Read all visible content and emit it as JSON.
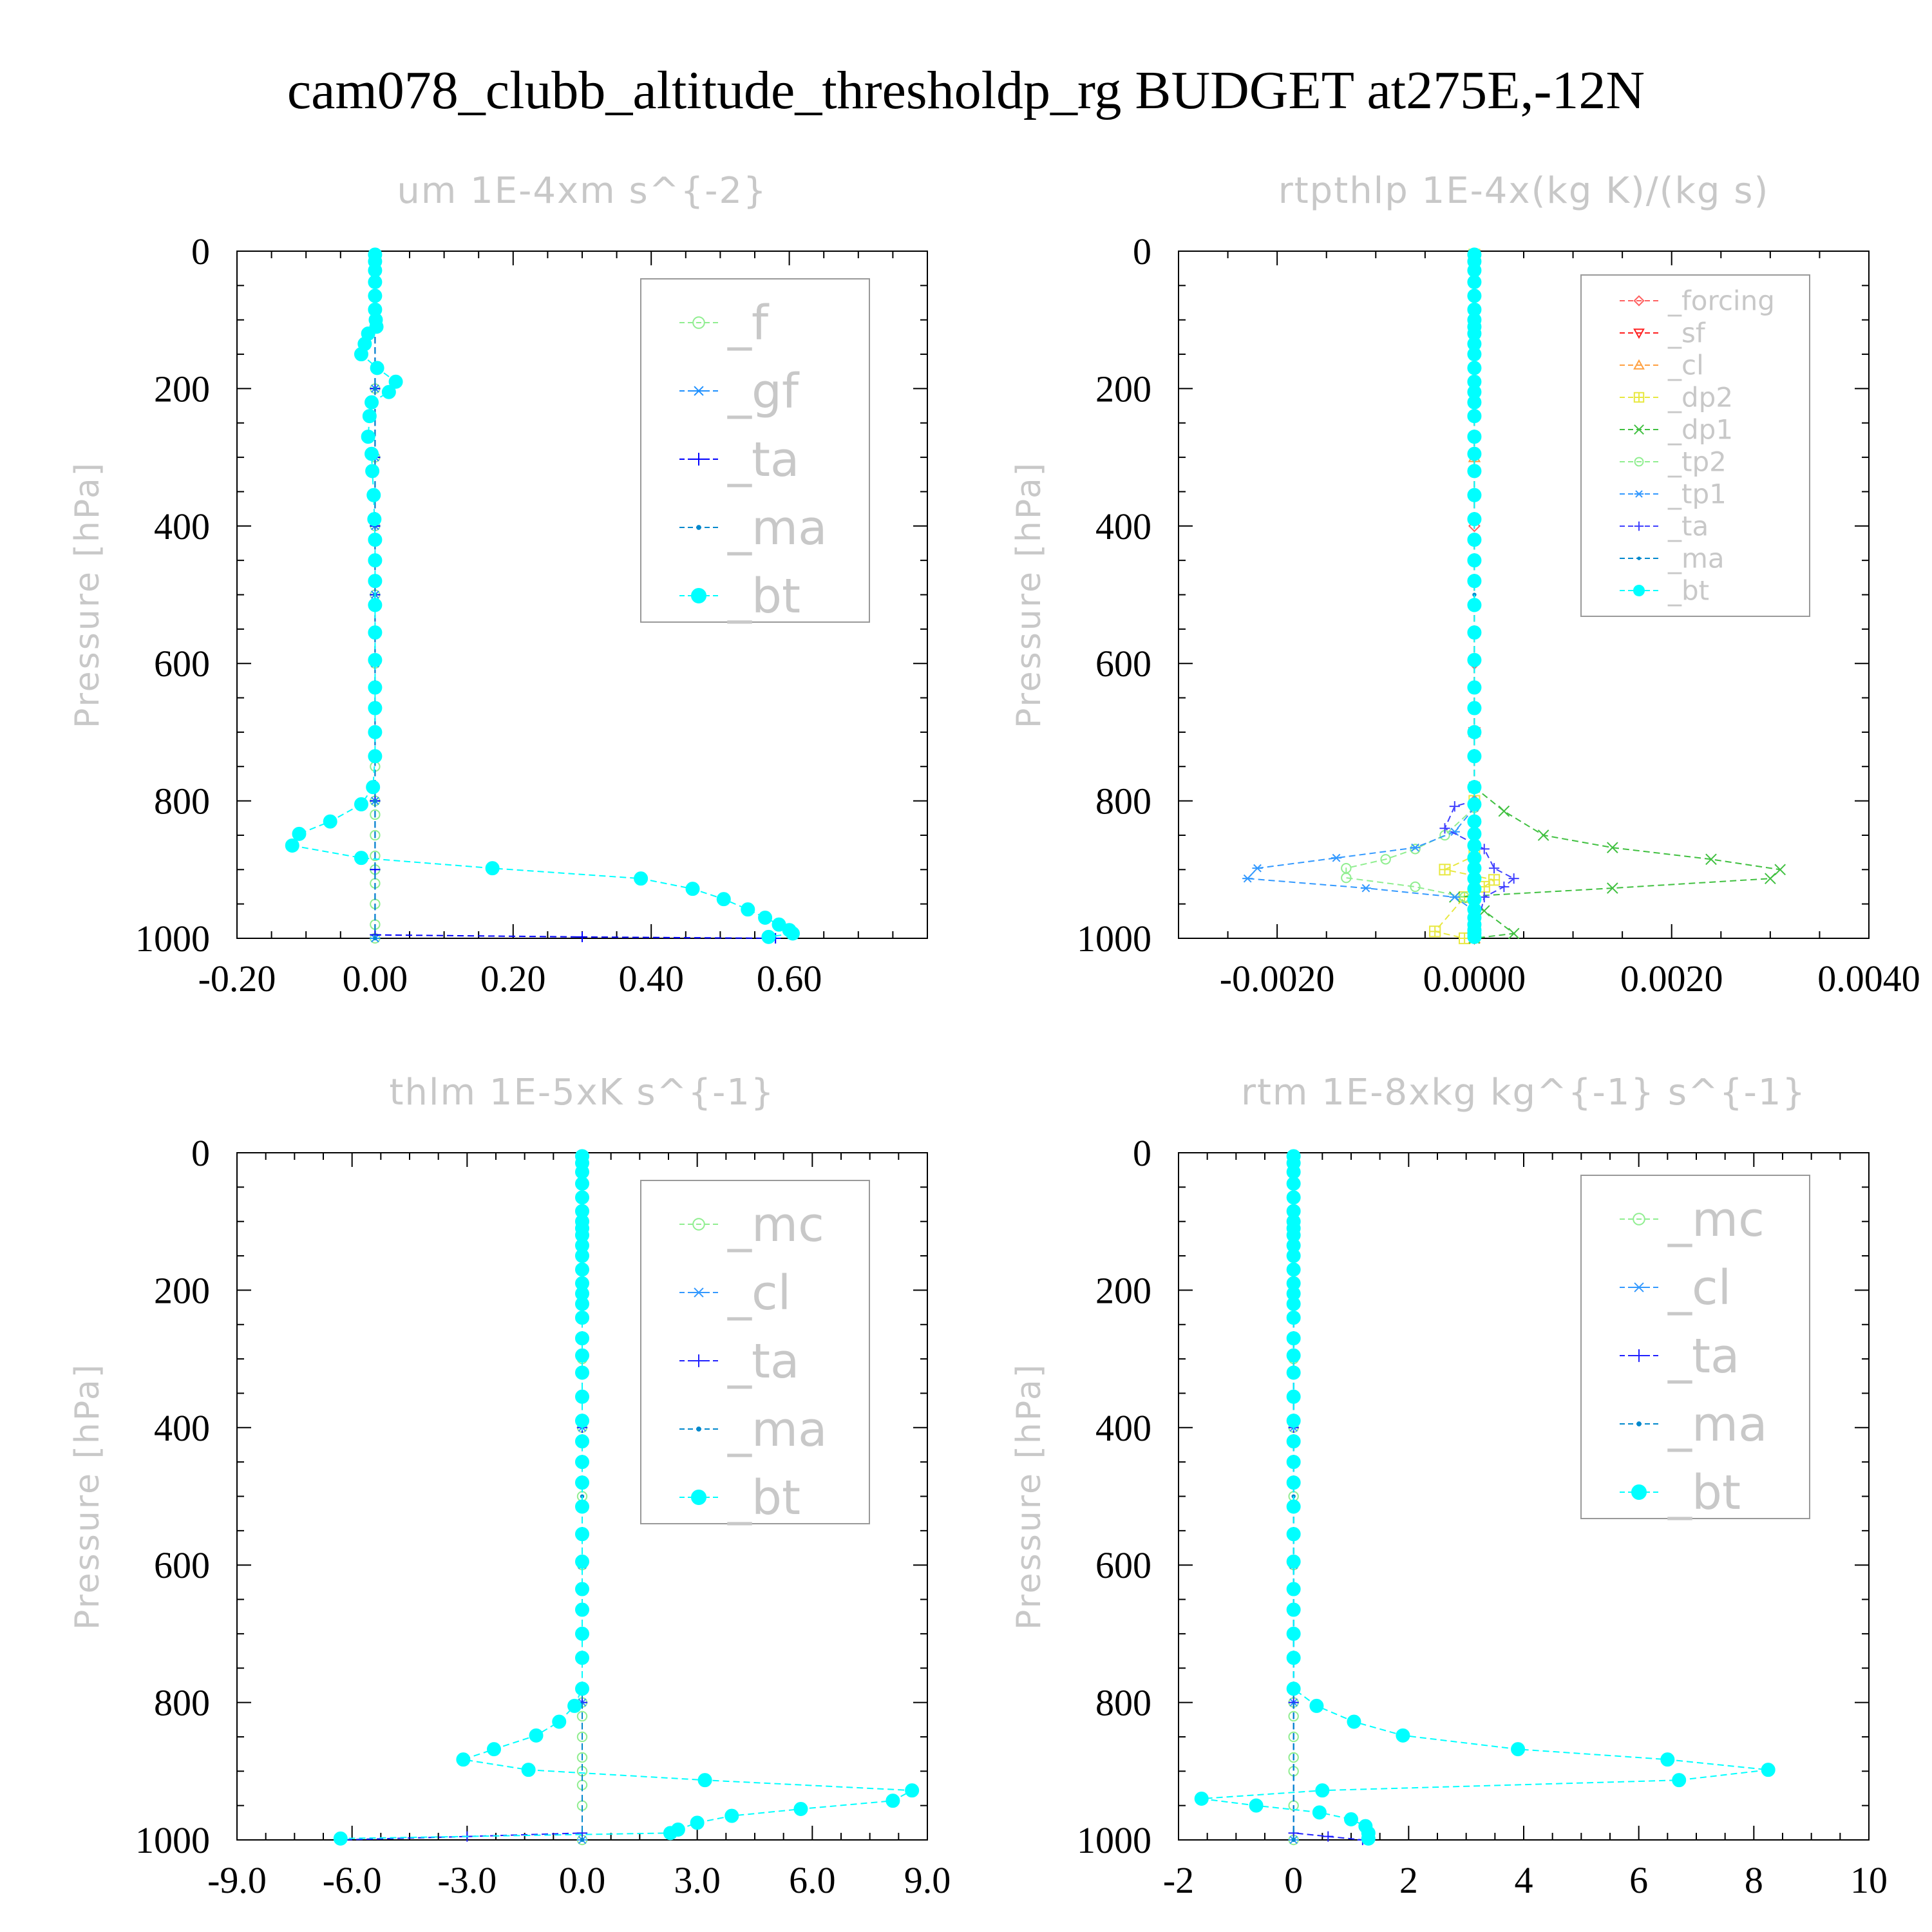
{
  "figure": {
    "title": "cam078_clubb_altitude_thresholdp_rg  BUDGET at275E,-12N"
  },
  "chart_data": [
    {
      "type": "line",
      "title": "um   1E-4xm s^{-2}",
      "ylabel": "Pressure [hPa]",
      "ylim": [
        1000,
        0
      ],
      "xlim": [
        -0.2,
        0.8
      ],
      "yticks": [
        "0",
        "200",
        "400",
        "600",
        "800",
        "1000"
      ],
      "xticks": [
        "-0.20",
        "0.00",
        "0.20",
        "0.40",
        "0.60"
      ],
      "grid": true,
      "legend_position": "top-right",
      "series": [
        {
          "name": "_f",
          "color": "#90ee90",
          "marker": "circle-open",
          "x": [
            0,
            0,
            0,
            0,
            0,
            0,
            0,
            0,
            0,
            0,
            0,
            0,
            0,
            0,
            0,
            0,
            0,
            0
          ],
          "y": [
            5,
            100,
            200,
            300,
            400,
            500,
            600,
            700,
            750,
            800,
            820,
            850,
            880,
            900,
            920,
            950,
            980,
            1000
          ]
        },
        {
          "name": "_gf",
          "color": "#1e90ff",
          "marker": "asterisk",
          "x": [
            0,
            0,
            0,
            0,
            0,
            0,
            0,
            0,
            0,
            0
          ],
          "y": [
            5,
            100,
            200,
            300,
            400,
            500,
            600,
            700,
            800,
            1000
          ]
        },
        {
          "name": "_ta",
          "color": "#0000ff",
          "marker": "plus",
          "x": [
            0,
            0,
            0,
            0,
            0,
            0,
            0,
            0,
            0,
            0,
            0,
            0.3,
            0.58
          ],
          "y": [
            5,
            100,
            200,
            300,
            400,
            500,
            600,
            700,
            800,
            900,
            995,
            998,
            1000
          ]
        },
        {
          "name": "_ma",
          "color": "#0088cc",
          "marker": "dot",
          "x": [
            0,
            0,
            0,
            0,
            0
          ],
          "y": [
            5,
            200,
            500,
            800,
            1000
          ]
        },
        {
          "name": "_bt",
          "color": "#00ffff",
          "marker": "circle-filled",
          "x": [
            0,
            0,
            0,
            0,
            0,
            0,
            0.001,
            0.002,
            -0.01,
            -0.015,
            -0.02,
            0.003,
            0.03,
            0.02,
            -0.005,
            -0.008,
            -0.01,
            -0.005,
            -0.004,
            -0.002,
            -0.001,
            0,
            0,
            0,
            0,
            0,
            0,
            0,
            0,
            0,
            0,
            -0.003,
            -0.02,
            -0.065,
            -0.11,
            -0.12,
            -0.02,
            0.17,
            0.385,
            0.46,
            0.505,
            0.54,
            0.565,
            0.585,
            0.6,
            0.605,
            0.57
          ],
          "y": [
            5,
            15,
            28,
            45,
            65,
            85,
            100,
            110,
            120,
            135,
            150,
            170,
            190,
            205,
            220,
            240,
            270,
            295,
            320,
            355,
            390,
            420,
            450,
            480,
            515,
            555,
            595,
            635,
            665,
            700,
            735,
            780,
            805,
            830,
            848,
            865,
            883,
            898,
            913,
            928,
            943,
            958,
            970,
            980,
            988,
            993,
            998
          ]
        }
      ]
    },
    {
      "type": "line",
      "title": "rtpthlp   1E-4x(kg K)/(kg s)",
      "ylabel": "Pressure [hPa]",
      "ylim": [
        1000,
        0
      ],
      "xlim": [
        -0.003,
        0.004
      ],
      "yticks": [
        "0",
        "200",
        "400",
        "600",
        "800",
        "1000"
      ],
      "xticks": [
        "-0.0020",
        "0.0000",
        "0.0020",
        "0.0040"
      ],
      "grid": true,
      "legend_position": "top-right",
      "series": [
        {
          "name": "_forcing",
          "color": "#ff6060",
          "marker": "diamond",
          "x": [
            0,
            0,
            0,
            0,
            0,
            0
          ],
          "y": [
            5,
            200,
            400,
            600,
            800,
            1000
          ]
        },
        {
          "name": "_sf",
          "color": "#ff2020",
          "marker": "triangle-down",
          "x": [
            0,
            0,
            0,
            0
          ],
          "y": [
            5,
            300,
            700,
            1000
          ]
        },
        {
          "name": "_cl",
          "color": "#ffa040",
          "marker": "triangle",
          "x": [
            0,
            0,
            0,
            0
          ],
          "y": [
            5,
            300,
            700,
            1000
          ]
        },
        {
          "name": "_dp2",
          "color": "#e8e840",
          "marker": "square-cross",
          "x": [
            0,
            0,
            0,
            -0.0003,
            0.0002,
            0.0001,
            -0.0001,
            -0.0004,
            -0.0001
          ],
          "y": [
            5,
            800,
            880,
            900,
            915,
            925,
            940,
            990,
            1000
          ]
        },
        {
          "name": "_dp1",
          "color": "#40c040",
          "marker": "cross",
          "x": [
            0,
            0.0003,
            0.0007,
            0.0014,
            0.0024,
            0.0031,
            0.003,
            0.0014,
            -0.0002,
            0.0001,
            0.0004,
            0
          ],
          "y": [
            780,
            815,
            850,
            868,
            885,
            900,
            913,
            927,
            940,
            960,
            993,
            1000
          ]
        },
        {
          "name": "_tp2",
          "color": "#90ee90",
          "marker": "circle-open",
          "x": [
            0,
            -0.0003,
            -0.0006,
            -0.0009,
            -0.0013,
            -0.0013,
            -0.0006,
            -0.0001,
            0,
            0
          ],
          "y": [
            810,
            850,
            870,
            885,
            898,
            912,
            925,
            940,
            960,
            1000
          ]
        },
        {
          "name": "_tp1",
          "color": "#3399ff",
          "marker": "asterisk",
          "x": [
            0,
            -0.0002,
            -0.0006,
            -0.0014,
            -0.0022,
            -0.0023,
            -0.0011,
            -0.0002,
            0,
            0
          ],
          "y": [
            810,
            845,
            868,
            883,
            898,
            913,
            927,
            940,
            960,
            1000
          ]
        },
        {
          "name": "_ta",
          "color": "#4040ff",
          "marker": "plus",
          "x": [
            0,
            -0.0002,
            -0.0003,
            0.0001,
            0.0002,
            0.0004,
            0.0003,
            0.0001,
            0
          ],
          "y": [
            800,
            808,
            840,
            870,
            898,
            913,
            925,
            940,
            1000
          ]
        },
        {
          "name": "_ma",
          "color": "#0088cc",
          "marker": "dot",
          "x": [
            0,
            0,
            0
          ],
          "y": [
            5,
            500,
            1000
          ]
        },
        {
          "name": "_bt",
          "color": "#00ffff",
          "marker": "circle-filled",
          "x": [
            0,
            0,
            0,
            0,
            0,
            0,
            0,
            0,
            0,
            0,
            0,
            0,
            0,
            0,
            0,
            0,
            0,
            0,
            0,
            0,
            0,
            0,
            0,
            0,
            0,
            0,
            0,
            0,
            0,
            0,
            0,
            0,
            0,
            0,
            0,
            0,
            0,
            0,
            0,
            0,
            0,
            0,
            0,
            0,
            0,
            0,
            0
          ],
          "y": [
            5,
            15,
            28,
            45,
            65,
            85,
            100,
            110,
            120,
            135,
            150,
            170,
            190,
            205,
            220,
            240,
            270,
            295,
            320,
            355,
            390,
            420,
            450,
            480,
            515,
            555,
            595,
            635,
            665,
            700,
            735,
            780,
            805,
            830,
            848,
            865,
            883,
            898,
            913,
            928,
            943,
            958,
            970,
            980,
            988,
            993,
            998
          ]
        }
      ]
    },
    {
      "type": "line",
      "title": "thlm   1E-5xK s^{-1}",
      "ylabel": "Pressure [hPa]",
      "ylim": [
        1000,
        0
      ],
      "xlim": [
        -9,
        9
      ],
      "yticks": [
        "0",
        "200",
        "400",
        "600",
        "800",
        "1000"
      ],
      "xticks": [
        "-9.0",
        "-6.0",
        "-3.0",
        "0.0",
        "3.0",
        "6.0",
        "9.0"
      ],
      "grid": true,
      "legend_position": "top-right",
      "series": [
        {
          "name": "_mc",
          "color": "#90ee90",
          "marker": "circle-open",
          "x": [
            0,
            0,
            0,
            0,
            0,
            0,
            0,
            0,
            0,
            0,
            0,
            0,
            0,
            0,
            0,
            0
          ],
          "y": [
            5,
            100,
            200,
            300,
            400,
            500,
            600,
            700,
            800,
            820,
            850,
            880,
            900,
            920,
            950,
            1000
          ]
        },
        {
          "name": "_cl",
          "color": "#3399ff",
          "marker": "asterisk",
          "x": [
            0,
            0,
            0,
            0,
            0,
            0
          ],
          "y": [
            5,
            200,
            400,
            600,
            800,
            1000
          ]
        },
        {
          "name": "_ta",
          "color": "#2020ff",
          "marker": "plus",
          "x": [
            0,
            0,
            0,
            0,
            0,
            0,
            -3,
            -6.3
          ],
          "y": [
            5,
            200,
            400,
            600,
            800,
            990,
            995,
            1000
          ]
        },
        {
          "name": "_ma",
          "color": "#0088cc",
          "marker": "dot",
          "x": [
            0,
            0,
            0
          ],
          "y": [
            5,
            500,
            1000
          ]
        },
        {
          "name": "_bt",
          "color": "#00ffff",
          "marker": "circle-filled",
          "x": [
            0,
            0,
            0,
            0,
            0,
            0,
            0,
            0,
            0,
            0,
            0,
            0,
            0,
            0,
            0,
            0,
            0,
            0,
            0,
            0,
            0,
            0,
            0,
            0,
            0,
            0,
            0,
            0,
            0,
            0,
            0,
            0,
            -0.2,
            -0.6,
            -1.2,
            -2.3,
            -3.1,
            -1.4,
            3.2,
            8.6,
            8.1,
            5.7,
            3.9,
            3.0,
            2.5,
            2.3,
            -6.3
          ],
          "y": [
            5,
            15,
            28,
            45,
            65,
            85,
            100,
            110,
            120,
            135,
            150,
            170,
            190,
            205,
            220,
            240,
            270,
            295,
            320,
            355,
            390,
            420,
            450,
            480,
            515,
            555,
            595,
            635,
            665,
            700,
            735,
            780,
            805,
            828,
            848,
            868,
            883,
            898,
            913,
            928,
            943,
            955,
            965,
            975,
            985,
            990,
            998
          ]
        }
      ]
    },
    {
      "type": "line",
      "title": "rtm   1E-8xkg kg^{-1} s^{-1}",
      "ylabel": "Pressure [hPa]",
      "ylim": [
        1000,
        0
      ],
      "xlim": [
        -2,
        10
      ],
      "yticks": [
        "0",
        "200",
        "400",
        "600",
        "800",
        "1000"
      ],
      "xticks": [
        "-2",
        "0",
        "2",
        "4",
        "6",
        "8",
        "10"
      ],
      "grid": true,
      "legend_position": "top-right",
      "series": [
        {
          "name": "_mc",
          "color": "#90ee90",
          "marker": "circle-open",
          "x": [
            0,
            0,
            0,
            0,
            0,
            0,
            0,
            0,
            0,
            0,
            0,
            0,
            0,
            0,
            0
          ],
          "y": [
            5,
            100,
            200,
            300,
            400,
            500,
            600,
            700,
            800,
            820,
            850,
            880,
            900,
            950,
            1000
          ]
        },
        {
          "name": "_cl",
          "color": "#3399ff",
          "marker": "asterisk",
          "x": [
            0,
            0,
            0,
            0,
            0,
            0
          ],
          "y": [
            5,
            200,
            400,
            600,
            800,
            1000
          ]
        },
        {
          "name": "_ta",
          "color": "#2020ff",
          "marker": "plus",
          "x": [
            0,
            0,
            0,
            0,
            0,
            0,
            0.6,
            1.2
          ],
          "y": [
            5,
            200,
            400,
            600,
            800,
            990,
            995,
            1000
          ]
        },
        {
          "name": "_ma",
          "color": "#0088cc",
          "marker": "dot",
          "x": [
            0,
            0,
            0
          ],
          "y": [
            5,
            500,
            1000
          ]
        },
        {
          "name": "_bt",
          "color": "#00ffff",
          "marker": "circle-filled",
          "x": [
            0,
            0,
            0,
            0,
            0,
            0,
            0,
            0,
            0,
            0,
            0,
            0,
            0,
            0,
            0,
            0,
            0,
            0,
            0,
            0,
            0,
            0,
            0,
            0,
            0,
            0,
            0,
            0,
            0,
            0,
            0,
            0,
            0.4,
            1.05,
            1.9,
            3.9,
            6.5,
            8.25,
            6.7,
            0.5,
            -1.6,
            -0.65,
            0.45,
            1.0,
            1.25,
            1.3,
            1.3
          ],
          "y": [
            5,
            15,
            28,
            45,
            65,
            85,
            100,
            110,
            120,
            135,
            150,
            170,
            190,
            205,
            220,
            240,
            270,
            295,
            320,
            355,
            390,
            420,
            450,
            480,
            515,
            555,
            595,
            635,
            665,
            700,
            735,
            780,
            805,
            828,
            848,
            868,
            883,
            898,
            913,
            928,
            940,
            950,
            960,
            970,
            980,
            990,
            998
          ]
        }
      ]
    }
  ]
}
